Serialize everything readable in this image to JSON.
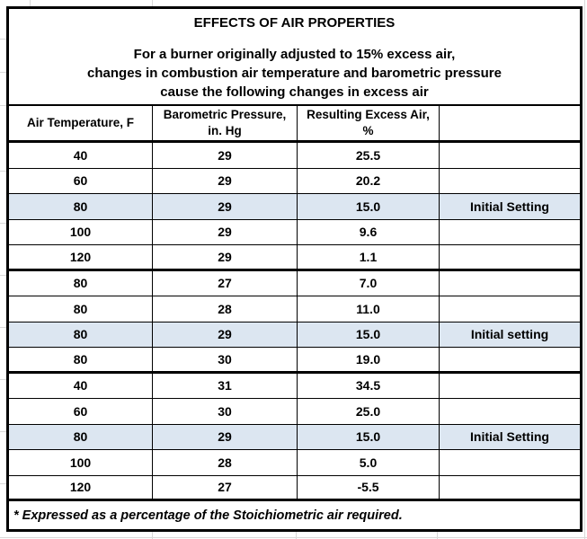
{
  "sheet": {
    "title": "EFFECTS OF AIR PROPERTIES",
    "subtitle_lines": [
      "For a burner originally adjusted to 15% excess air,",
      "changes in combustion air temperature and barometric pressure",
      "cause the following changes in excess air"
    ],
    "columns": [
      {
        "line1": "Air Temperature, F",
        "line2": ""
      },
      {
        "line1": "Barometric Pressure,",
        "line2": "in. Hg"
      },
      {
        "line1": "Resulting Excess Air,",
        "line2": "%"
      },
      {
        "line1": "",
        "line2": ""
      }
    ],
    "rows": [
      {
        "temp": "40",
        "pressure": "29",
        "excess": "25.5",
        "note": "",
        "highlight": false,
        "thick_bottom": false
      },
      {
        "temp": "60",
        "pressure": "29",
        "excess": "20.2",
        "note": "",
        "highlight": false,
        "thick_bottom": false
      },
      {
        "temp": "80",
        "pressure": "29",
        "excess": "15.0",
        "note": "Initial Setting",
        "highlight": true,
        "thick_bottom": false
      },
      {
        "temp": "100",
        "pressure": "29",
        "excess": "9.6",
        "note": "",
        "highlight": false,
        "thick_bottom": false
      },
      {
        "temp": "120",
        "pressure": "29",
        "excess": "1.1",
        "note": "",
        "highlight": false,
        "thick_bottom": true
      },
      {
        "temp": "80",
        "pressure": "27",
        "excess": "7.0",
        "note": "",
        "highlight": false,
        "thick_bottom": false
      },
      {
        "temp": "80",
        "pressure": "28",
        "excess": "11.0",
        "note": "",
        "highlight": false,
        "thick_bottom": false
      },
      {
        "temp": "80",
        "pressure": "29",
        "excess": "15.0",
        "note": "Initial setting",
        "highlight": true,
        "thick_bottom": false
      },
      {
        "temp": "80",
        "pressure": "30",
        "excess": "19.0",
        "note": "",
        "highlight": false,
        "thick_bottom": true
      },
      {
        "temp": "40",
        "pressure": "31",
        "excess": "34.5",
        "note": "",
        "highlight": false,
        "thick_bottom": false
      },
      {
        "temp": "60",
        "pressure": "30",
        "excess": "25.0",
        "note": "",
        "highlight": false,
        "thick_bottom": false
      },
      {
        "temp": "80",
        "pressure": "29",
        "excess": "15.0",
        "note": "Initial Setting",
        "highlight": true,
        "thick_bottom": false
      },
      {
        "temp": "100",
        "pressure": "28",
        "excess": "5.0",
        "note": "",
        "highlight": false,
        "thick_bottom": false
      },
      {
        "temp": "120",
        "pressure": "27",
        "excess": "-5.5",
        "note": "",
        "highlight": false,
        "thick_bottom": true
      }
    ],
    "footnote": "* Expressed as a percentage of the Stoichiometric air required.",
    "colors": {
      "highlight": "#dce6f1",
      "border": "#000000",
      "gridline": "#d9d9d9"
    }
  }
}
